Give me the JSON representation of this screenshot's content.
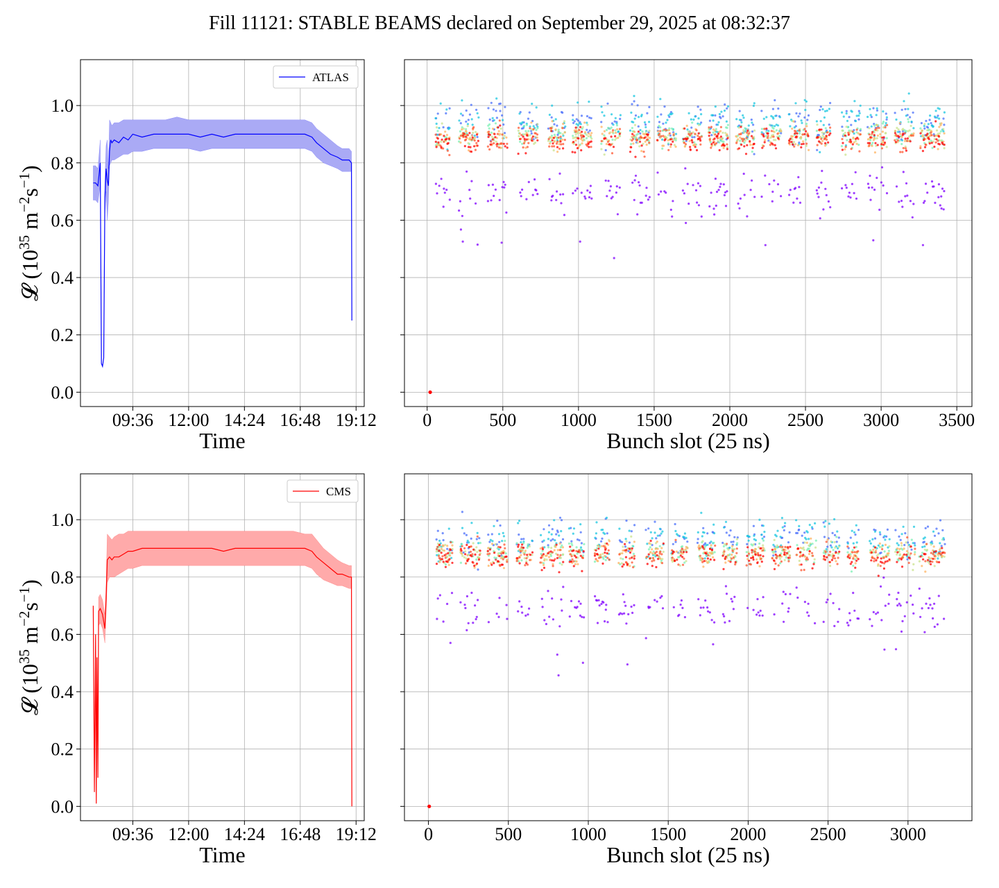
{
  "figure": {
    "title": "Fill 11121: STABLE BEAMS declared on September 29, 2025 at 08:32:37"
  },
  "colors": {
    "atlas": "#0000ff",
    "atlas_band": "#aaaaf5",
    "cms": "#ff0000",
    "cms_band": "#ffaaaa",
    "grid": "#b0b0b0",
    "scatter_colormap": [
      "#8000ff",
      "#4a6ffb",
      "#1ac7e0",
      "#7cf0b4",
      "#c9e38f",
      "#ffb360",
      "#ff5530",
      "#ff0000"
    ]
  },
  "chart_data": [
    {
      "id": "atlas-time",
      "type": "line",
      "xlabel": "Time",
      "ylabel_main": "𝓛 (10",
      "ylabel_sup1": "35",
      "ylabel_mid": " m",
      "ylabel_sup2": "−2",
      "ylabel_mid2": "s",
      "ylabel_sup3": "−1",
      "ylabel_end": ")",
      "xlim_hours": [
        7.35,
        19.55
      ],
      "ylim": [
        -0.05,
        1.16
      ],
      "x_ticks": [
        {
          "value": 9.6,
          "label": "09:36"
        },
        {
          "value": 12.0,
          "label": "12:00"
        },
        {
          "value": 14.4,
          "label": "14:24"
        },
        {
          "value": 16.8,
          "label": "16:48"
        },
        {
          "value": 19.2,
          "label": "19:12"
        }
      ],
      "y_ticks": [
        {
          "value": 0.0,
          "label": "0.0"
        },
        {
          "value": 0.2,
          "label": "0.2"
        },
        {
          "value": 0.4,
          "label": "0.4"
        },
        {
          "value": 0.6,
          "label": "0.6"
        },
        {
          "value": 0.8,
          "label": "0.8"
        },
        {
          "value": 1.0,
          "label": "1.0"
        }
      ],
      "grid": true,
      "legend": {
        "placement": "upper-right",
        "entries": [
          "ATLAS"
        ]
      },
      "series": [
        {
          "name": "ATLAS",
          "x": [
            7.9,
            8.0,
            8.1,
            8.2,
            8.25,
            8.3,
            8.35,
            8.4,
            8.45,
            8.5,
            8.55,
            8.6,
            8.65,
            8.7,
            8.8,
            9.0,
            9.2,
            9.4,
            9.6,
            10.0,
            10.5,
            11.0,
            11.5,
            12.0,
            12.5,
            13.0,
            13.5,
            14.0,
            14.5,
            15.0,
            15.5,
            16.0,
            16.5,
            17.0,
            17.3,
            17.5,
            17.8,
            18.1,
            18.4,
            18.6,
            18.9,
            19.0,
            19.02
          ],
          "y": [
            0.73,
            0.73,
            0.72,
            0.8,
            0.1,
            0.09,
            0.12,
            0.68,
            0.78,
            0.74,
            0.72,
            0.84,
            0.88,
            0.87,
            0.88,
            0.87,
            0.89,
            0.88,
            0.9,
            0.89,
            0.9,
            0.9,
            0.9,
            0.9,
            0.89,
            0.9,
            0.89,
            0.9,
            0.9,
            0.9,
            0.9,
            0.9,
            0.9,
            0.9,
            0.89,
            0.87,
            0.85,
            0.83,
            0.82,
            0.81,
            0.81,
            0.8,
            0.25
          ],
          "band_lo": [
            0.67,
            0.67,
            0.66,
            0.72,
            0.1,
            0.09,
            0.12,
            0.62,
            0.7,
            0.6,
            0.66,
            0.79,
            0.8,
            0.81,
            0.81,
            0.82,
            0.83,
            0.83,
            0.84,
            0.84,
            0.85,
            0.85,
            0.85,
            0.85,
            0.84,
            0.85,
            0.85,
            0.85,
            0.85,
            0.85,
            0.85,
            0.85,
            0.85,
            0.85,
            0.84,
            0.82,
            0.8,
            0.79,
            0.78,
            0.77,
            0.77,
            0.77,
            0.25
          ],
          "band_hi": [
            0.79,
            0.79,
            0.78,
            0.88,
            0.1,
            0.09,
            0.12,
            0.74,
            0.86,
            0.88,
            0.78,
            0.95,
            0.94,
            0.93,
            0.94,
            0.94,
            0.95,
            0.95,
            0.95,
            0.95,
            0.95,
            0.95,
            0.96,
            0.95,
            0.95,
            0.95,
            0.95,
            0.95,
            0.95,
            0.95,
            0.95,
            0.95,
            0.95,
            0.95,
            0.94,
            0.92,
            0.9,
            0.88,
            0.86,
            0.85,
            0.85,
            0.84,
            0.25
          ]
        }
      ]
    },
    {
      "id": "atlas-bunch",
      "type": "scatter",
      "xlabel": "Bunch slot (25 ns)",
      "xlim": [
        -150,
        3600
      ],
      "ylim": [
        -0.05,
        1.16
      ],
      "x_ticks": [
        {
          "value": 0,
          "label": "0"
        },
        {
          "value": 500,
          "label": "500"
        },
        {
          "value": 1000,
          "label": "1000"
        },
        {
          "value": 1500,
          "label": "1500"
        },
        {
          "value": 2000,
          "label": "2000"
        },
        {
          "value": 2500,
          "label": "2500"
        },
        {
          "value": 3000,
          "label": "3000"
        },
        {
          "value": 3500,
          "label": "3500"
        }
      ],
      "y_ticks": [
        0.0,
        0.2,
        0.4,
        0.6,
        0.8,
        1.0
      ],
      "grid": true,
      "bunch_start": 55,
      "bunch_end": 3420,
      "trains": [
        [
          55,
          150
        ],
        [
          210,
          340
        ],
        [
          400,
          530
        ],
        [
          600,
          730
        ],
        [
          800,
          910
        ],
        [
          960,
          1090
        ],
        [
          1150,
          1280
        ],
        [
          1340,
          1470
        ],
        [
          1520,
          1640
        ],
        [
          1690,
          1810
        ],
        [
          1860,
          1990
        ],
        [
          2040,
          2160
        ],
        [
          2210,
          2340
        ],
        [
          2390,
          2520
        ],
        [
          2570,
          2660
        ],
        [
          2740,
          2860
        ],
        [
          2910,
          3040
        ],
        [
          3090,
          3210
        ],
        [
          3260,
          3420
        ]
      ],
      "isolated": [
        {
          "x": 20,
          "y": 0.0
        }
      ],
      "core_mean": 0.88,
      "low_mean": 0.7
    },
    {
      "id": "cms-time",
      "type": "line",
      "xlabel": "Time",
      "ylabel_main": "𝓛 (10",
      "ylabel_sup1": "35",
      "ylabel_mid": " m",
      "ylabel_sup2": "−2",
      "ylabel_mid2": "s",
      "ylabel_sup3": "−1",
      "ylabel_end": ")",
      "xlim_hours": [
        7.35,
        19.55
      ],
      "ylim": [
        -0.05,
        1.16
      ],
      "x_ticks": [
        {
          "value": 9.6,
          "label": "09:36"
        },
        {
          "value": 12.0,
          "label": "12:00"
        },
        {
          "value": 14.4,
          "label": "14:24"
        },
        {
          "value": 16.8,
          "label": "16:48"
        },
        {
          "value": 19.2,
          "label": "19:12"
        }
      ],
      "y_ticks": [
        {
          "value": 0.0,
          "label": "0.0"
        },
        {
          "value": 0.2,
          "label": "0.2"
        },
        {
          "value": 0.4,
          "label": "0.4"
        },
        {
          "value": 0.6,
          "label": "0.6"
        },
        {
          "value": 0.8,
          "label": "0.8"
        },
        {
          "value": 1.0,
          "label": "1.0"
        }
      ],
      "grid": true,
      "legend": {
        "placement": "upper-right",
        "entries": [
          "CMS"
        ]
      },
      "series": [
        {
          "name": "CMS",
          "x": [
            7.9,
            7.95,
            8.0,
            8.03,
            8.06,
            8.1,
            8.13,
            8.2,
            8.3,
            8.4,
            8.45,
            8.5,
            8.6,
            8.7,
            8.8,
            9.0,
            9.2,
            9.4,
            9.6,
            10.0,
            10.5,
            11.0,
            11.5,
            12.0,
            12.5,
            13.0,
            13.5,
            14.0,
            14.5,
            15.0,
            15.5,
            16.0,
            16.5,
            17.0,
            17.3,
            17.5,
            17.8,
            18.1,
            18.4,
            18.6,
            18.9,
            19.0,
            19.02
          ],
          "y": [
            0.7,
            0.05,
            0.6,
            0.01,
            0.52,
            0.1,
            0.68,
            0.69,
            0.67,
            0.62,
            0.72,
            0.86,
            0.87,
            0.86,
            0.87,
            0.87,
            0.88,
            0.89,
            0.89,
            0.9,
            0.9,
            0.9,
            0.9,
            0.9,
            0.9,
            0.9,
            0.89,
            0.9,
            0.9,
            0.9,
            0.9,
            0.9,
            0.9,
            0.9,
            0.89,
            0.87,
            0.85,
            0.83,
            0.81,
            0.81,
            0.8,
            0.8,
            0.0
          ],
          "band_lo": [
            0.7,
            0.05,
            0.6,
            0.01,
            0.52,
            0.1,
            0.63,
            0.64,
            0.62,
            0.57,
            0.67,
            0.78,
            0.8,
            0.8,
            0.8,
            0.81,
            0.82,
            0.83,
            0.83,
            0.84,
            0.84,
            0.84,
            0.84,
            0.84,
            0.84,
            0.84,
            0.84,
            0.84,
            0.84,
            0.84,
            0.84,
            0.84,
            0.84,
            0.84,
            0.83,
            0.81,
            0.79,
            0.78,
            0.77,
            0.77,
            0.76,
            0.76,
            0.0
          ],
          "band_hi": [
            0.7,
            0.05,
            0.6,
            0.01,
            0.52,
            0.1,
            0.73,
            0.74,
            0.72,
            0.67,
            0.77,
            0.95,
            0.94,
            0.93,
            0.94,
            0.95,
            0.95,
            0.96,
            0.96,
            0.96,
            0.96,
            0.96,
            0.96,
            0.96,
            0.96,
            0.96,
            0.96,
            0.96,
            0.96,
            0.96,
            0.96,
            0.96,
            0.96,
            0.95,
            0.95,
            0.93,
            0.9,
            0.88,
            0.86,
            0.85,
            0.84,
            0.84,
            0.0
          ]
        }
      ]
    },
    {
      "id": "cms-bunch",
      "type": "scatter",
      "xlabel": "Bunch slot (25 ns)",
      "xlim": [
        -150,
        3400
      ],
      "ylim": [
        -0.05,
        1.16
      ],
      "x_ticks": [
        {
          "value": 0,
          "label": "0"
        },
        {
          "value": 500,
          "label": "500"
        },
        {
          "value": 1000,
          "label": "1000"
        },
        {
          "value": 1500,
          "label": "1500"
        },
        {
          "value": 2000,
          "label": "2000"
        },
        {
          "value": 2500,
          "label": "2500"
        },
        {
          "value": 3000,
          "label": "3000"
        }
      ],
      "y_ticks": [
        0.0,
        0.2,
        0.4,
        0.6,
        0.8,
        1.0
      ],
      "grid": true,
      "bunch_start": 50,
      "bunch_end": 3230,
      "trains": [
        [
          50,
          150
        ],
        [
          200,
          320
        ],
        [
          370,
          490
        ],
        [
          550,
          650
        ],
        [
          700,
          840
        ],
        [
          880,
          970
        ],
        [
          1040,
          1130
        ],
        [
          1190,
          1290
        ],
        [
          1360,
          1470
        ],
        [
          1520,
          1620
        ],
        [
          1680,
          1790
        ],
        [
          1840,
          1930
        ],
        [
          1990,
          2100
        ],
        [
          2150,
          2260
        ],
        [
          2300,
          2420
        ],
        [
          2470,
          2570
        ],
        [
          2620,
          2690
        ],
        [
          2760,
          2880
        ],
        [
          2920,
          3040
        ],
        [
          3070,
          3230
        ]
      ],
      "isolated": [
        {
          "x": 5,
          "y": 0.0
        }
      ],
      "core_mean": 0.87,
      "low_mean": 0.69
    }
  ]
}
